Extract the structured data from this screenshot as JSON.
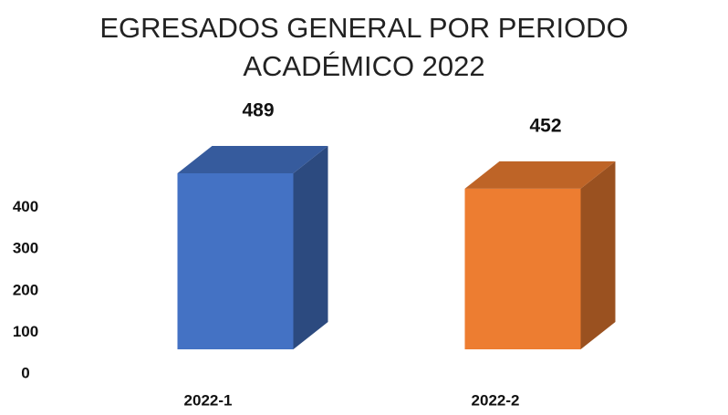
{
  "chart_data": {
    "type": "bar3d",
    "title": "EGRESADOS GENERAL POR PERIODO ACADÉMICO 2022",
    "categories": [
      "2022-1",
      "2022-2"
    ],
    "values": [
      489,
      452
    ],
    "colors": [
      "#4472c4",
      "#ed7d31"
    ],
    "ylim": [
      0,
      500
    ],
    "yticks": [
      0,
      100,
      200,
      300,
      400
    ],
    "grid": false
  }
}
